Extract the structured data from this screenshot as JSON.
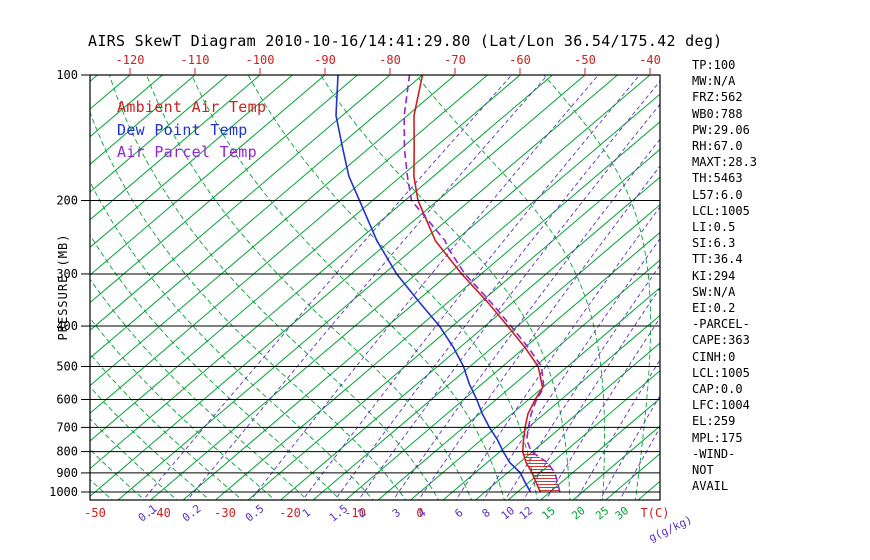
{
  "title": "AIRS SkewT Diagram 2010-10-16/14:41:29.80 (Lat/Lon 36.54/175.42 deg)",
  "legend": [
    {
      "label": "Ambient Air Temp",
      "color": "#cc2020"
    },
    {
      "label": "Dew Point Temp",
      "color": "#2233cc"
    },
    {
      "label": "Air Parcel Temp",
      "color": "#9325cc"
    }
  ],
  "stats_panel": [
    "TP:100",
    "MW:N/A",
    "FRZ:562",
    "WB0:788",
    "PW:29.06",
    "RH:67.0",
    "MAXT:28.3",
    "TH:5463",
    "L57:6.0",
    "LCL:1005",
    "LI:0.5",
    "SI:6.3",
    "TT:36.4",
    "KI:294",
    "SW:N/A",
    "EI:0.2",
    "-PARCEL-",
    "CAPE:363",
    "CINH:0",
    "LCL:1005",
    "CAP:0.0",
    "LFC:1004",
    "EL:259",
    "MPL:175",
    "-WIND-",
    "NOT",
    "AVAIL"
  ],
  "chart_data": {
    "type": "line",
    "title": "AIRS SkewT Diagram 2010-10-16/14:41:29.80 (Lat/Lon 36.54/175.42 deg)",
    "x_axis": {
      "label": "T(C)",
      "label_color": "#cc2020",
      "top_tick_labels": [
        -120,
        -110,
        -100,
        -90,
        -80,
        -70,
        -60,
        -50,
        -40
      ],
      "bottom_tick_labels": [
        -50,
        -40,
        -30,
        -20,
        -10,
        0
      ],
      "tick_color": "#cc2020"
    },
    "y_axis": {
      "label": "PRESSURE (MB)",
      "scale": "log",
      "tick_labels": [
        100,
        200,
        300,
        400,
        500,
        600,
        700,
        800,
        900,
        1000
      ],
      "range": [
        100,
        1050
      ]
    },
    "isotherms": {
      "color": "#00a335",
      "step_c": 5,
      "min_c": -130,
      "max_c": 45
    },
    "moist_adiabats": {
      "color": "#00a335",
      "dashed": true,
      "start_min_c": -60,
      "start_max_c": 85,
      "step_c": 5
    },
    "mixing_ratio_lines": {
      "color": "#5b2fbf",
      "dashed": true,
      "label": "g(g/kg)",
      "values": [
        0.1,
        0.2,
        0.5,
        1,
        1.5,
        2,
        3,
        4,
        6,
        8,
        10,
        12,
        15,
        20,
        25,
        30
      ],
      "green_label_values": [
        15,
        20,
        25,
        30
      ],
      "green_label_color": "#00a335"
    },
    "series": [
      {
        "name": "Ambient Air Temp",
        "color": "#cc2020",
        "style": "solid",
        "points_p_t": [
          [
            1000,
            18.5
          ],
          [
            950,
            16.2
          ],
          [
            900,
            13.8
          ],
          [
            850,
            11
          ],
          [
            800,
            8.5
          ],
          [
            750,
            6.5
          ],
          [
            700,
            4.5
          ],
          [
            650,
            2.5
          ],
          [
            600,
            1
          ],
          [
            562,
            0
          ],
          [
            500,
            -4.5
          ],
          [
            450,
            -10
          ],
          [
            400,
            -16.5
          ],
          [
            350,
            -24
          ],
          [
            300,
            -33
          ],
          [
            250,
            -43
          ],
          [
            200,
            -53
          ],
          [
            175,
            -58
          ],
          [
            150,
            -63
          ],
          [
            125,
            -69
          ],
          [
            100,
            -75
          ]
        ]
      },
      {
        "name": "Dew Point Temp",
        "color": "#2233cc",
        "style": "solid",
        "points_p_t": [
          [
            1000,
            17
          ],
          [
            950,
            14.5
          ],
          [
            900,
            12
          ],
          [
            850,
            8.5
          ],
          [
            800,
            5.5
          ],
          [
            750,
            2.5
          ],
          [
            700,
            -1
          ],
          [
            650,
            -4.5
          ],
          [
            600,
            -8
          ],
          [
            550,
            -12
          ],
          [
            500,
            -16
          ],
          [
            450,
            -21
          ],
          [
            400,
            -27
          ],
          [
            350,
            -34.5
          ],
          [
            300,
            -43
          ],
          [
            250,
            -52
          ],
          [
            200,
            -62
          ],
          [
            175,
            -68
          ],
          [
            150,
            -74
          ],
          [
            125,
            -81
          ],
          [
            100,
            -88
          ]
        ]
      },
      {
        "name": "Air Parcel Temp",
        "color": "#9325cc",
        "style": "dashed",
        "points_p_t": [
          [
            1000,
            21.5
          ],
          [
            950,
            19.5
          ],
          [
            900,
            17.3
          ],
          [
            850,
            14.3
          ],
          [
            800,
            9.8
          ],
          [
            750,
            7
          ],
          [
            700,
            5
          ],
          [
            650,
            3
          ],
          [
            600,
            1.2
          ],
          [
            562,
            0.2
          ],
          [
            500,
            -4
          ],
          [
            450,
            -9.5
          ],
          [
            400,
            -16
          ],
          [
            350,
            -23.5
          ],
          [
            300,
            -32.5
          ],
          [
            259,
            -40
          ],
          [
            250,
            -41.5
          ],
          [
            200,
            -54
          ],
          [
            175,
            -59
          ],
          [
            150,
            -64.5
          ],
          [
            125,
            -70.5
          ],
          [
            100,
            -77
          ]
        ]
      }
    ],
    "cape_area": {
      "between": [
        "Air Parcel Temp",
        "Ambient Air Temp"
      ],
      "pressure_range": [
        1000,
        800
      ],
      "hatch_color": "#cc2020"
    }
  }
}
